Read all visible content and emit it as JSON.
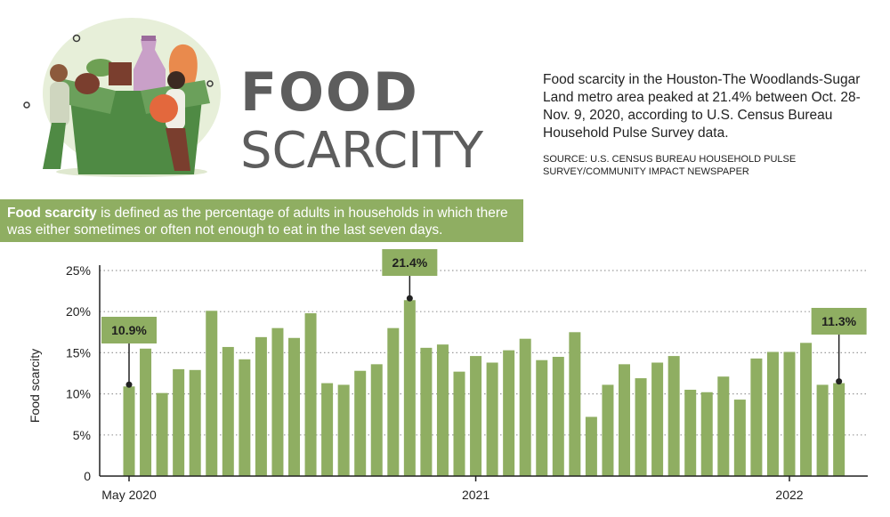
{
  "header": {
    "title_line1": "FOOD",
    "title_line2": "SCARCITY",
    "summary": "Food scarcity in the Houston-The Woodlands-Sugar Land metro area peaked at 21.4% between Oct. 28-Nov. 9, 2020, according to U.S. Census Bureau Household Pulse Survey data.",
    "source": "SOURCE: U.S. CENSUS BUREAU HOUSEHOLD PULSE SURVEY/COMMUNITY IMPACT NEWSPAPER"
  },
  "definition": {
    "term": "Food scarcity",
    "text": " is defined as the percentage of adults in households in which there was either sometimes or often not enough to eat in the last seven days."
  },
  "colors": {
    "bar": "#8fae62",
    "callout_bg": "#8fae62",
    "title": "#5d5d5d"
  },
  "chart_data": {
    "type": "bar",
    "ylabel": "Food scarcity",
    "ylim": [
      0,
      25
    ],
    "yticks": [
      0,
      5,
      10,
      15,
      20,
      25
    ],
    "ytick_labels": [
      "0",
      "5%",
      "10%",
      "15%",
      "20%",
      "25%"
    ],
    "xtick_labels": [
      {
        "label": "May 2020",
        "index": 0
      },
      {
        "label": "2021",
        "index": 21
      },
      {
        "label": "2022",
        "index": 40
      }
    ],
    "grid": true,
    "values": [
      10.9,
      15.5,
      10.1,
      13.0,
      12.9,
      20.1,
      15.7,
      14.2,
      16.9,
      18.0,
      16.8,
      19.8,
      11.3,
      11.1,
      12.8,
      13.6,
      18.0,
      21.4,
      15.6,
      16.0,
      12.7,
      14.6,
      13.8,
      15.3,
      16.7,
      14.1,
      14.5,
      17.5,
      7.2,
      11.1,
      13.6,
      11.9,
      13.8,
      14.6,
      10.5,
      10.2,
      12.1,
      9.3,
      14.3,
      15.1,
      15.1,
      16.2,
      11.1,
      11.3
    ],
    "annotations": [
      {
        "label": "10.9%",
        "index": 0
      },
      {
        "label": "21.4%",
        "index": 17
      },
      {
        "label": "11.3%",
        "index": 43
      }
    ]
  }
}
